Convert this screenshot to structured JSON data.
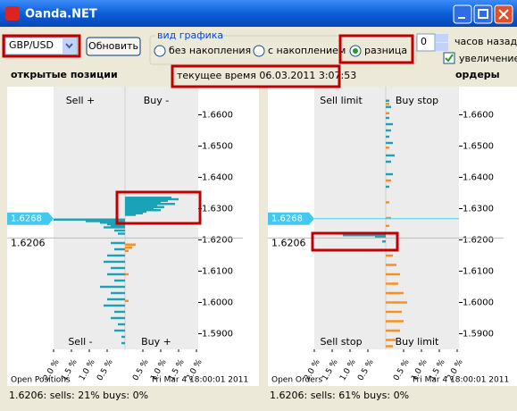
{
  "window": {
    "title": "Oanda.NET"
  },
  "toolbar": {
    "instrument": "GBP/USD",
    "refresh": "Обновить",
    "group_title": "вид графика",
    "modes": [
      "без накопления",
      "с накоплением",
      "разница"
    ],
    "selected_mode": 2,
    "hours": "0",
    "hours_label": "часов назад",
    "zoom_label": "увеличение",
    "zoom": true
  },
  "positions_title": "открытые позиции",
  "orders_title": "ордеры",
  "time_label": "текущее время 06.03.2011 3:07:53",
  "chart_data": [
    {
      "type": "bar",
      "orientation": "horizontal",
      "corner_labels": [
        "Sell +",
        "Buy -",
        "Sell -",
        "Buy +"
      ],
      "footer_left": "Open Positions",
      "footer_right": "Fri Mar 4 18:00:01 2011",
      "status": "1.6206:  sells: 21%  buys: 0%",
      "current_price": {
        "value": 1.6268,
        "label": "1.6268"
      },
      "cursor_price": {
        "value": 1.6206,
        "label": "1.6206"
      },
      "ylim": [
        1.585,
        1.669
      ],
      "yticks": [
        {
          "value": 1.66,
          "label": "1.6600"
        },
        {
          "value": 1.65,
          "label": "1.6500"
        },
        {
          "value": 1.64,
          "label": "1.6400"
        },
        {
          "value": 1.63,
          "label": "1.6300"
        },
        {
          "value": 1.62,
          "label": "1.6200"
        },
        {
          "value": 1.61,
          "label": "1.6100"
        },
        {
          "value": 1.6,
          "label": "1.6000"
        },
        {
          "value": 1.59,
          "label": "1.5900"
        }
      ],
      "xlim": [
        -2,
        2
      ],
      "xticks": [
        {
          "value": -2,
          "label": "2.0 %"
        },
        {
          "value": -1.5,
          "label": "1.5 %"
        },
        {
          "value": -1,
          "label": "1.0 %"
        },
        {
          "value": -0.5,
          "label": "0.5 %"
        },
        {
          "value": 0.5,
          "label": "0.5 %"
        },
        {
          "value": 1,
          "label": "1.0 %"
        },
        {
          "value": 1.5,
          "label": "1.5 %"
        },
        {
          "value": 2,
          "label": "2.0 %"
        }
      ],
      "series": [
        {
          "color": "#1aa3b8",
          "prices": [
            1.6335,
            1.633,
            1.6325,
            1.632,
            1.6315,
            1.631,
            1.6305,
            1.63,
            1.6295,
            1.629,
            1.6285,
            1.628,
            1.6265,
            1.626,
            1.6255,
            1.625,
            1.6245,
            1.624,
            1.623,
            1.622,
            1.619,
            1.617,
            1.615,
            1.613,
            1.611,
            1.609,
            1.607,
            1.605,
            1.603,
            1.601,
            1.599,
            1.597,
            1.595,
            1.593,
            1.591,
            1.589,
            1.587
          ],
          "values": [
            1.3,
            1.5,
            1.2,
            1.0,
            1.4,
            0.9,
            1.1,
            0.8,
            1.0,
            0.6,
            0.5,
            0.3,
            -2.0,
            -1.1,
            -0.7,
            -0.5,
            -0.4,
            -0.6,
            -0.3,
            -0.2,
            -0.4,
            -0.3,
            -0.5,
            -0.6,
            -0.4,
            -0.5,
            -0.3,
            -0.7,
            -0.4,
            -0.5,
            -0.6,
            -0.3,
            -0.4,
            -0.2,
            -0.3,
            -0.1,
            -0.1
          ]
        },
        {
          "color": "#ff8c1a",
          "prices": [
            1.6185,
            1.6175,
            1.6165,
            1.609,
            1.6005
          ],
          "values": [
            0.3,
            0.2,
            0.1,
            0.1,
            0.1
          ]
        }
      ]
    },
    {
      "type": "bar",
      "orientation": "horizontal",
      "corner_labels": [
        "Sell limit",
        "Buy stop",
        "Sell stop",
        "Buy limit"
      ],
      "footer_left": "Open Orders",
      "footer_right": "Fri Mar 4 18:00:01 2011",
      "status": "1.6206:  sells: 61%  buys: 0%",
      "current_price": {
        "value": 1.6268,
        "label": "1.6268"
      },
      "cursor_price": {
        "value": 1.6206,
        "label": "1.6206"
      },
      "ylim": [
        1.585,
        1.669
      ],
      "yticks": [
        {
          "value": 1.66,
          "label": "1.6600"
        },
        {
          "value": 1.65,
          "label": "1.6500"
        },
        {
          "value": 1.64,
          "label": "1.6400"
        },
        {
          "value": 1.63,
          "label": "1.6300"
        },
        {
          "value": 1.62,
          "label": "1.6200"
        },
        {
          "value": 1.61,
          "label": "1.6100"
        },
        {
          "value": 1.6,
          "label": "1.6000"
        },
        {
          "value": 1.59,
          "label": "1.5900"
        }
      ],
      "xlim": [
        -2,
        2
      ],
      "xticks": [
        {
          "value": -2,
          "label": "2.0 %"
        },
        {
          "value": -1.5,
          "label": "1.5 %"
        },
        {
          "value": -1,
          "label": "1.0 %"
        },
        {
          "value": -0.5,
          "label": "0.5 %"
        },
        {
          "value": 0.5,
          "label": "0.5 %"
        },
        {
          "value": 1,
          "label": "1.0 %"
        },
        {
          "value": 1.5,
          "label": "1.5 %"
        },
        {
          "value": 2,
          "label": "2.0 %"
        }
      ],
      "series": [
        {
          "color": "#1aa3b8",
          "prices": [
            1.6645,
            1.6625,
            1.659,
            1.657,
            1.655,
            1.653,
            1.651,
            1.647,
            1.645,
            1.641,
            1.637,
            1.6215,
            1.621,
            1.6195
          ],
          "values": [
            0.1,
            0.15,
            0.1,
            0.2,
            0.15,
            0.1,
            0.2,
            0.25,
            0.15,
            0.2,
            0.1,
            -1.2,
            -0.3,
            -0.1
          ]
        },
        {
          "color": "#ff8c1a",
          "prices": [
            1.6635,
            1.6605,
            1.6495,
            1.639,
            1.632,
            1.627,
            1.6245,
            1.615,
            1.612,
            1.609,
            1.606,
            1.603,
            1.6,
            1.597,
            1.594,
            1.591,
            1.588,
            1.586
          ],
          "values": [
            0.1,
            0.1,
            0.1,
            0.15,
            0.1,
            0.15,
            0.1,
            0.2,
            0.3,
            0.4,
            0.35,
            0.5,
            0.6,
            0.45,
            0.5,
            0.4,
            0.3,
            0.2
          ]
        }
      ]
    }
  ]
}
